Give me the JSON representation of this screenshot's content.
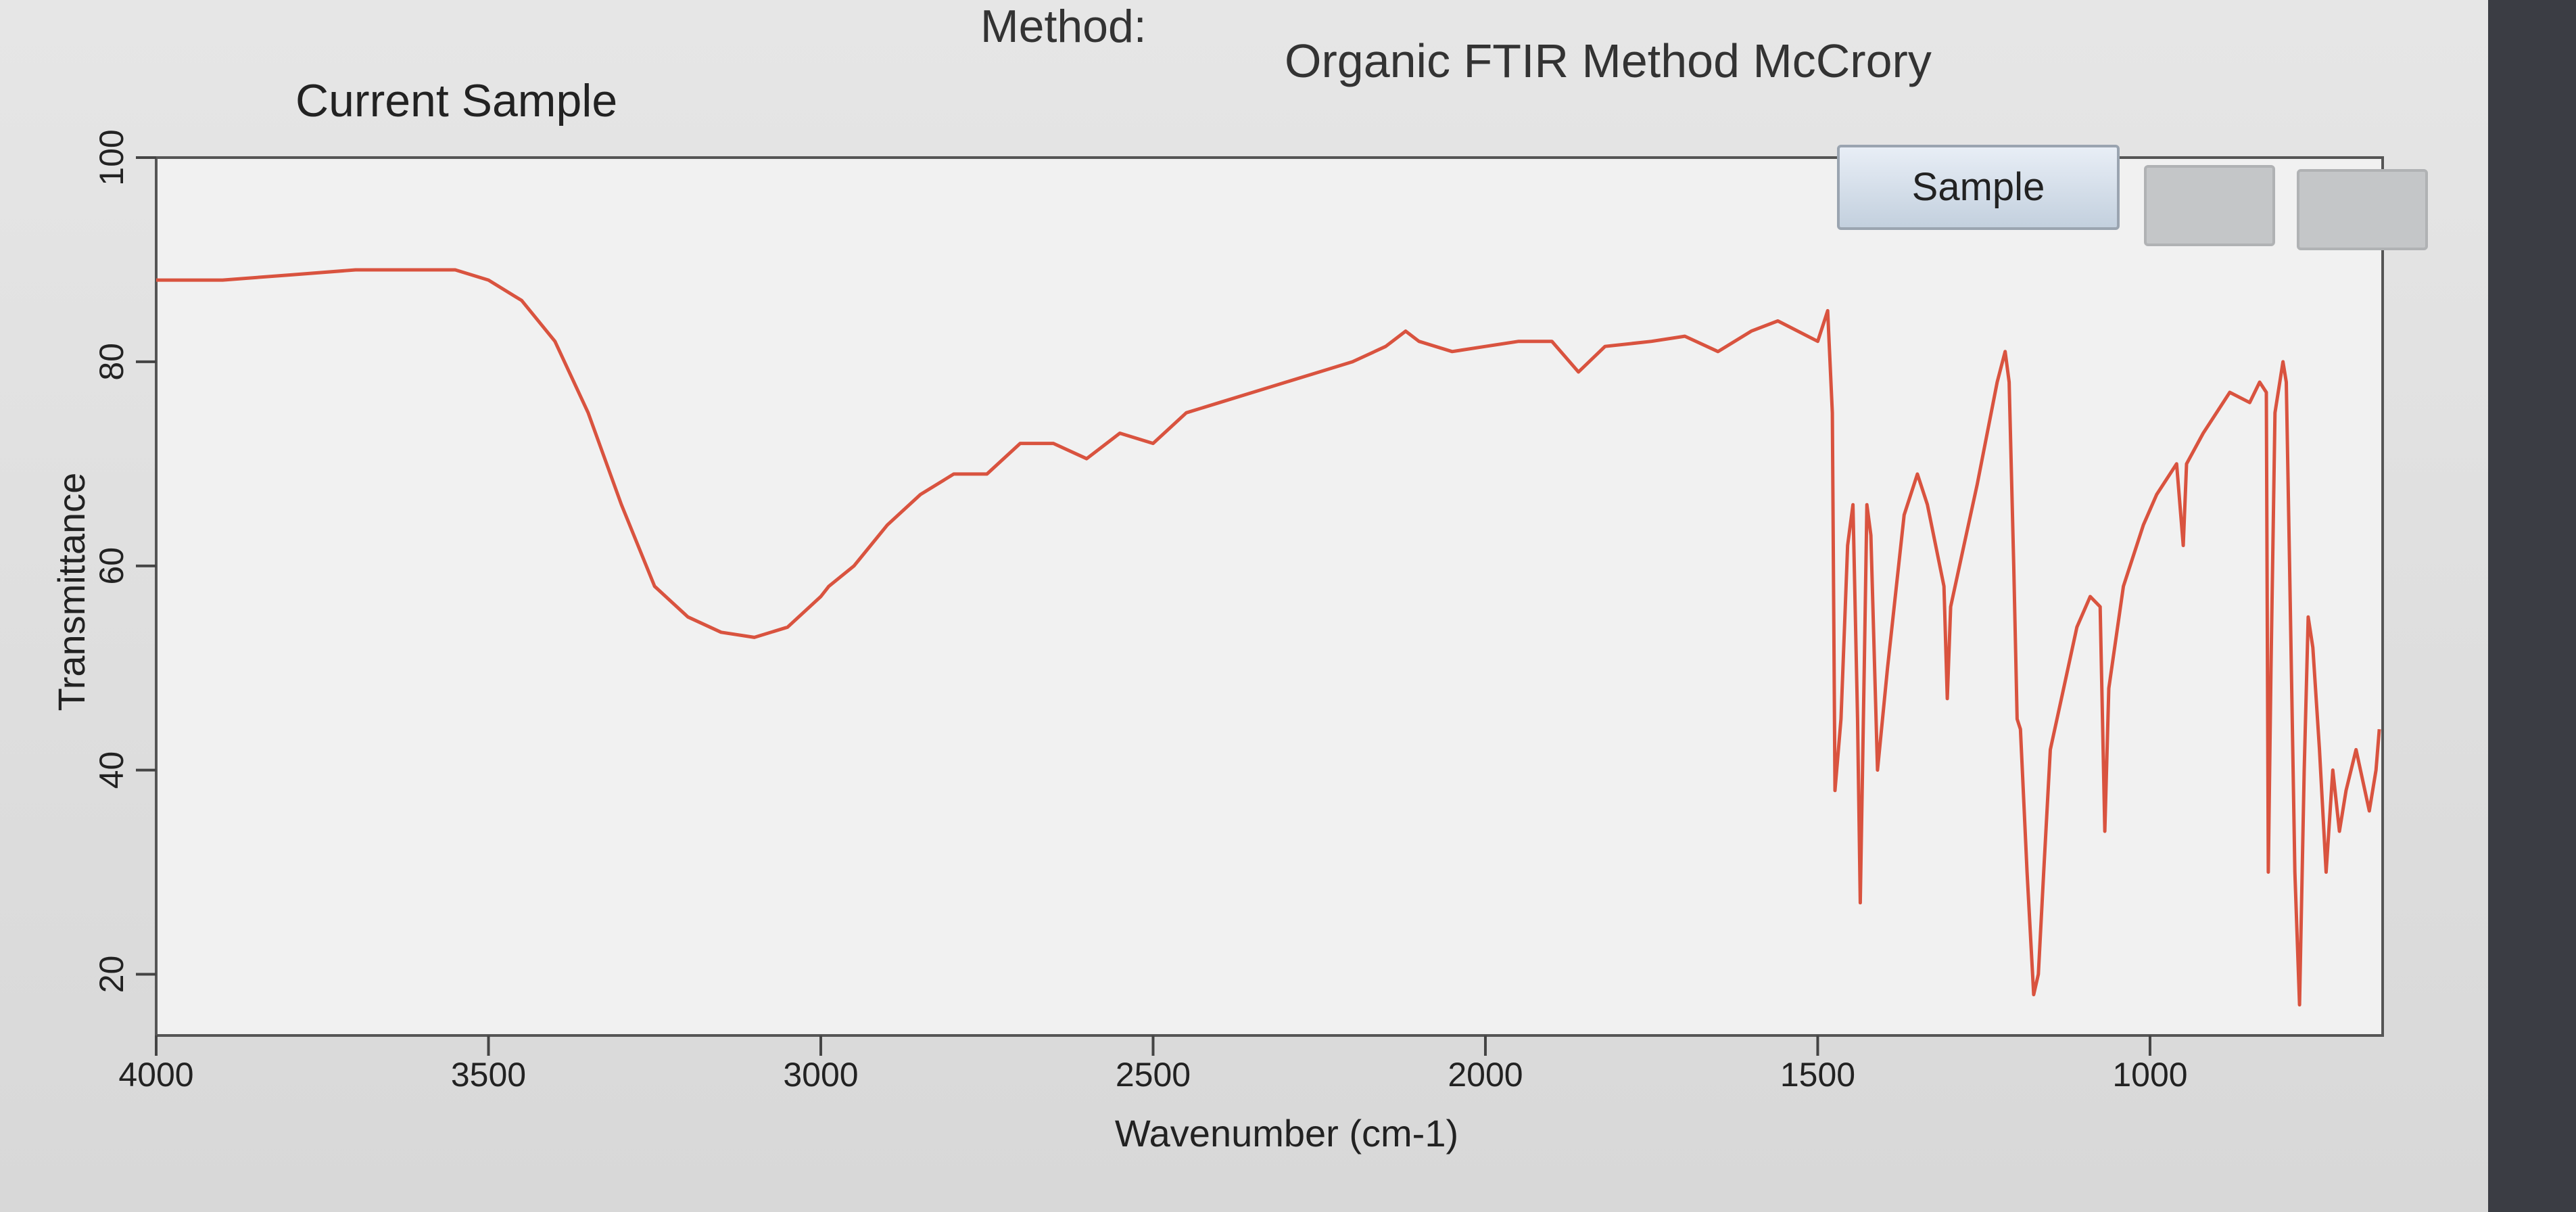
{
  "header": {
    "method_label": "Method:",
    "method_name": "Organic FTIR Method McCrory",
    "panel_title": "Current Sample"
  },
  "buttons": {
    "sample": "Sample"
  },
  "chart_data": {
    "type": "line",
    "xlabel": "Wavenumber (cm-1)",
    "ylabel": "Transmittance",
    "x": [
      4000,
      3900,
      3800,
      3700,
      3600,
      3550,
      3500,
      3450,
      3400,
      3350,
      3300,
      3250,
      3200,
      3150,
      3100,
      3050,
      3000,
      2988,
      2950,
      2900,
      2850,
      2800,
      2750,
      2700,
      2650,
      2600,
      2550,
      2500,
      2450,
      2400,
      2350,
      2300,
      2250,
      2200,
      2150,
      2120,
      2100,
      2050,
      2000,
      1950,
      1900,
      1860,
      1820,
      1750,
      1700,
      1650,
      1600,
      1560,
      1500,
      1485,
      1478,
      1474,
      1465,
      1455,
      1447,
      1440,
      1436,
      1430,
      1426,
      1420,
      1410,
      1395,
      1370,
      1350,
      1335,
      1310,
      1305,
      1300,
      1280,
      1260,
      1230,
      1218,
      1212,
      1205,
      1200,
      1195,
      1185,
      1175,
      1168,
      1160,
      1150,
      1130,
      1110,
      1090,
      1075,
      1068,
      1062,
      1040,
      1010,
      990,
      960,
      950,
      945,
      920,
      880,
      850,
      835,
      825,
      822,
      818,
      812,
      800,
      795,
      790,
      782,
      775,
      768,
      762,
      755,
      745,
      735,
      725,
      715,
      705,
      690,
      670,
      660,
      655
    ],
    "values": [
      88,
      88,
      88.5,
      89,
      89,
      89,
      88,
      86,
      82,
      75,
      66,
      58,
      55,
      53.5,
      53,
      54,
      57,
      58,
      60,
      64,
      67,
      69,
      69,
      72,
      72,
      70.5,
      73,
      72,
      75,
      76,
      77,
      78,
      79,
      80,
      81.5,
      83,
      82,
      81,
      81.5,
      82,
      82,
      79,
      81.5,
      82,
      82.5,
      81,
      83,
      84,
      82,
      85,
      75,
      38,
      45,
      62,
      66,
      45,
      27,
      50,
      66,
      63,
      40,
      50,
      65,
      69,
      66,
      58,
      47,
      56,
      62,
      68,
      78,
      81,
      78,
      60,
      45,
      44,
      30,
      18,
      20,
      30,
      42,
      48,
      54,
      57,
      56,
      34,
      48,
      58,
      64,
      67,
      70,
      62,
      70,
      73,
      77,
      76,
      78,
      77,
      30,
      50,
      75,
      80,
      78,
      60,
      30,
      17,
      40,
      55,
      52,
      42,
      30,
      40,
      34,
      38,
      42,
      36,
      40,
      44
    ],
    "color": "#d9533f",
    "xlim": [
      4000,
      650
    ],
    "xticks": [
      4000,
      3500,
      3000,
      2500,
      2000,
      1500,
      1000
    ],
    "ylim": [
      14,
      100
    ],
    "yticks": [
      20,
      40,
      60,
      80,
      100
    ]
  }
}
